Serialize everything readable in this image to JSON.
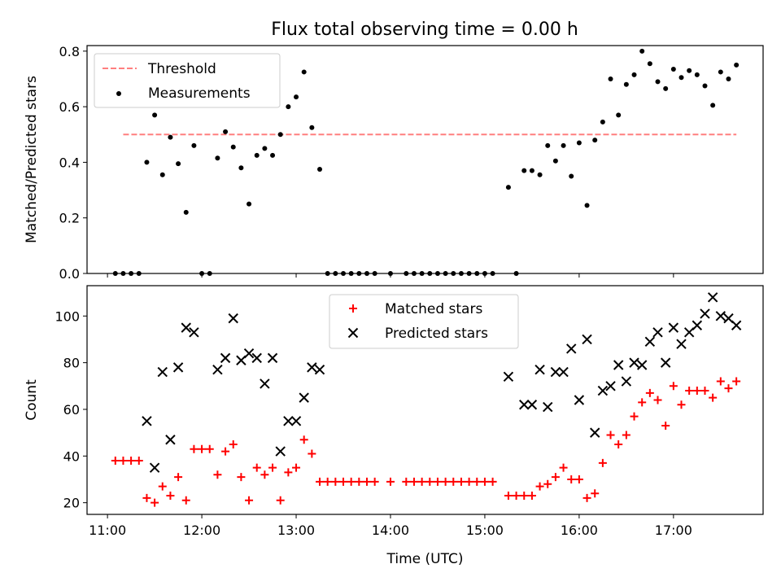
{
  "figure": {
    "title": "Flux total observing time = 0.00 h"
  },
  "chart_data": [
    {
      "type": "scatter",
      "panel": "top",
      "title": "Flux total observing time = 0.00 h",
      "ylabel": "Matched/Predicted stars",
      "xlabel": "",
      "xlim": [
        "10:47",
        "17:57"
      ],
      "ylim": [
        0,
        0.82
      ],
      "yticks": [
        0.0,
        0.2,
        0.4,
        0.6,
        0.8
      ],
      "ytick_labels": [
        "0.0",
        "0.2",
        "0.4",
        "0.6",
        "0.8"
      ],
      "xticks": [
        "11:00",
        "12:00",
        "13:00",
        "14:00",
        "15:00",
        "16:00",
        "17:00"
      ],
      "xtick_labels_visible": false,
      "grid": false,
      "legend": {
        "placement": "top-left",
        "entries": [
          "Threshold",
          "Measurements"
        ]
      },
      "series": [
        {
          "name": "Threshold",
          "kind": "dashed-line",
          "color": "#ff7f7f",
          "points": [
            [
              "11:10",
              0.5
            ],
            [
              "17:40",
              0.5
            ]
          ]
        },
        {
          "name": "Measurements",
          "kind": "dot",
          "color": "#000000",
          "points": [
            [
              "11:05",
              0.0
            ],
            [
              "11:10",
              0.0
            ],
            [
              "11:15",
              0.0
            ],
            [
              "11:20",
              0.0
            ],
            [
              "11:25",
              0.4
            ],
            [
              "11:30",
              0.57
            ],
            [
              "11:35",
              0.355
            ],
            [
              "11:40",
              0.49
            ],
            [
              "11:45",
              0.395
            ],
            [
              "11:50",
              0.22
            ],
            [
              "11:55",
              0.46
            ],
            [
              "12:00",
              0.0
            ],
            [
              "12:05",
              0.0
            ],
            [
              "12:10",
              0.415
            ],
            [
              "12:15",
              0.51
            ],
            [
              "12:20",
              0.455
            ],
            [
              "12:25",
              0.38
            ],
            [
              "12:30",
              0.25
            ],
            [
              "12:35",
              0.425
            ],
            [
              "12:40",
              0.45
            ],
            [
              "12:45",
              0.425
            ],
            [
              "12:50",
              0.5
            ],
            [
              "12:55",
              0.6
            ],
            [
              "13:00",
              0.635
            ],
            [
              "13:05",
              0.725
            ],
            [
              "13:10",
              0.525
            ],
            [
              "13:15",
              0.375
            ],
            [
              "13:20",
              0.0
            ],
            [
              "13:25",
              0.0
            ],
            [
              "13:30",
              0.0
            ],
            [
              "13:35",
              0.0
            ],
            [
              "13:40",
              0.0
            ],
            [
              "13:45",
              0.0
            ],
            [
              "13:50",
              0.0
            ],
            [
              "14:00",
              0.0
            ],
            [
              "14:10",
              0.0
            ],
            [
              "14:15",
              0.0
            ],
            [
              "14:20",
              0.0
            ],
            [
              "14:25",
              0.0
            ],
            [
              "14:30",
              0.0
            ],
            [
              "14:35",
              0.0
            ],
            [
              "14:40",
              0.0
            ],
            [
              "14:45",
              0.0
            ],
            [
              "14:50",
              0.0
            ],
            [
              "14:55",
              0.0
            ],
            [
              "15:00",
              0.0
            ],
            [
              "15:05",
              0.0
            ],
            [
              "15:15",
              0.31
            ],
            [
              "15:20",
              0.0
            ],
            [
              "15:25",
              0.37
            ],
            [
              "15:30",
              0.37
            ],
            [
              "15:35",
              0.355
            ],
            [
              "15:40",
              0.46
            ],
            [
              "15:45",
              0.405
            ],
            [
              "15:50",
              0.46
            ],
            [
              "15:55",
              0.35
            ],
            [
              "16:00",
              0.47
            ],
            [
              "16:05",
              0.245
            ],
            [
              "16:10",
              0.48
            ],
            [
              "16:15",
              0.545
            ],
            [
              "16:20",
              0.7
            ],
            [
              "16:25",
              0.57
            ],
            [
              "16:30",
              0.68
            ],
            [
              "16:35",
              0.715
            ],
            [
              "16:40",
              0.8
            ],
            [
              "16:45",
              0.755
            ],
            [
              "16:50",
              0.69
            ],
            [
              "16:55",
              0.665
            ],
            [
              "17:00",
              0.735
            ],
            [
              "17:05",
              0.705
            ],
            [
              "17:10",
              0.73
            ],
            [
              "17:15",
              0.715
            ],
            [
              "17:20",
              0.675
            ],
            [
              "17:25",
              0.605
            ],
            [
              "17:30",
              0.725
            ],
            [
              "17:35",
              0.7
            ],
            [
              "17:40",
              0.75
            ]
          ]
        }
      ]
    },
    {
      "type": "scatter",
      "panel": "bottom",
      "title": "",
      "xlabel": "Time (UTC)",
      "ylabel": "Count",
      "xlim": [
        "10:47",
        "17:57"
      ],
      "ylim": [
        15,
        113
      ],
      "yticks": [
        20,
        40,
        60,
        80,
        100
      ],
      "ytick_labels": [
        "20",
        "40",
        "60",
        "80",
        "100"
      ],
      "xticks": [
        "11:00",
        "12:00",
        "13:00",
        "14:00",
        "15:00",
        "16:00",
        "17:00"
      ],
      "xtick_labels": [
        "11:00",
        "12:00",
        "13:00",
        "14:00",
        "15:00",
        "16:00",
        "17:00"
      ],
      "grid": false,
      "legend": {
        "placement": "top-center",
        "entries": [
          "Matched stars",
          "Predicted stars"
        ]
      },
      "series": [
        {
          "name": "Matched stars",
          "marker": "plus",
          "color": "#ff0000",
          "points": [
            [
              "11:05",
              38
            ],
            [
              "11:10",
              38
            ],
            [
              "11:15",
              38
            ],
            [
              "11:20",
              38
            ],
            [
              "11:25",
              22
            ],
            [
              "11:30",
              20
            ],
            [
              "11:35",
              27
            ],
            [
              "11:40",
              23
            ],
            [
              "11:45",
              31
            ],
            [
              "11:50",
              21
            ],
            [
              "11:55",
              43
            ],
            [
              "12:00",
              43
            ],
            [
              "12:05",
              43
            ],
            [
              "12:10",
              32
            ],
            [
              "12:15",
              42
            ],
            [
              "12:20",
              45
            ],
            [
              "12:25",
              31
            ],
            [
              "12:30",
              21
            ],
            [
              "12:35",
              35
            ],
            [
              "12:40",
              32
            ],
            [
              "12:45",
              35
            ],
            [
              "12:50",
              21
            ],
            [
              "12:55",
              33
            ],
            [
              "13:00",
              35
            ],
            [
              "13:05",
              47
            ],
            [
              "13:10",
              41
            ],
            [
              "13:15",
              29
            ],
            [
              "13:20",
              29
            ],
            [
              "13:25",
              29
            ],
            [
              "13:30",
              29
            ],
            [
              "13:35",
              29
            ],
            [
              "13:40",
              29
            ],
            [
              "13:45",
              29
            ],
            [
              "13:50",
              29
            ],
            [
              "14:00",
              29
            ],
            [
              "14:10",
              29
            ],
            [
              "14:15",
              29
            ],
            [
              "14:20",
              29
            ],
            [
              "14:25",
              29
            ],
            [
              "14:30",
              29
            ],
            [
              "14:35",
              29
            ],
            [
              "14:40",
              29
            ],
            [
              "14:45",
              29
            ],
            [
              "14:50",
              29
            ],
            [
              "14:55",
              29
            ],
            [
              "15:00",
              29
            ],
            [
              "15:05",
              29
            ],
            [
              "15:15",
              23
            ],
            [
              "15:20",
              23
            ],
            [
              "15:25",
              23
            ],
            [
              "15:30",
              23
            ],
            [
              "15:35",
              27
            ],
            [
              "15:40",
              28
            ],
            [
              "15:45",
              31
            ],
            [
              "15:50",
              35
            ],
            [
              "15:55",
              30
            ],
            [
              "16:00",
              30
            ],
            [
              "16:05",
              22
            ],
            [
              "16:10",
              24
            ],
            [
              "16:15",
              37
            ],
            [
              "16:20",
              49
            ],
            [
              "16:25",
              45
            ],
            [
              "16:30",
              49
            ],
            [
              "16:35",
              57
            ],
            [
              "16:40",
              63
            ],
            [
              "16:45",
              67
            ],
            [
              "16:50",
              64
            ],
            [
              "16:55",
              53
            ],
            [
              "17:00",
              70
            ],
            [
              "17:05",
              62
            ],
            [
              "17:10",
              68
            ],
            [
              "17:15",
              68
            ],
            [
              "17:20",
              68
            ],
            [
              "17:25",
              65
            ],
            [
              "17:30",
              72
            ],
            [
              "17:35",
              69
            ],
            [
              "17:40",
              72
            ]
          ]
        },
        {
          "name": "Predicted stars",
          "marker": "x",
          "color": "#000000",
          "points": [
            [
              "11:25",
              55
            ],
            [
              "11:30",
              35
            ],
            [
              "11:35",
              76
            ],
            [
              "11:40",
              47
            ],
            [
              "11:45",
              78
            ],
            [
              "11:50",
              95
            ],
            [
              "11:55",
              93
            ],
            [
              "12:10",
              77
            ],
            [
              "12:15",
              82
            ],
            [
              "12:20",
              99
            ],
            [
              "12:25",
              81
            ],
            [
              "12:30",
              84
            ],
            [
              "12:35",
              82
            ],
            [
              "12:40",
              71
            ],
            [
              "12:45",
              82
            ],
            [
              "12:50",
              42
            ],
            [
              "12:55",
              55
            ],
            [
              "13:00",
              55
            ],
            [
              "13:05",
              65
            ],
            [
              "13:10",
              78
            ],
            [
              "13:15",
              77
            ],
            [
              "15:15",
              74
            ],
            [
              "15:25",
              62
            ],
            [
              "15:30",
              62
            ],
            [
              "15:35",
              77
            ],
            [
              "15:40",
              61
            ],
            [
              "15:45",
              76
            ],
            [
              "15:50",
              76
            ],
            [
              "15:55",
              86
            ],
            [
              "16:00",
              64
            ],
            [
              "16:05",
              90
            ],
            [
              "16:10",
              50
            ],
            [
              "16:15",
              68
            ],
            [
              "16:20",
              70
            ],
            [
              "16:25",
              79
            ],
            [
              "16:30",
              72
            ],
            [
              "16:35",
              80
            ],
            [
              "16:40",
              79
            ],
            [
              "16:45",
              89
            ],
            [
              "16:50",
              93
            ],
            [
              "16:55",
              80
            ],
            [
              "17:00",
              95
            ],
            [
              "17:05",
              88
            ],
            [
              "17:10",
              93
            ],
            [
              "17:15",
              96
            ],
            [
              "17:20",
              101
            ],
            [
              "17:25",
              108
            ],
            [
              "17:30",
              100
            ],
            [
              "17:35",
              99
            ],
            [
              "17:40",
              96
            ]
          ]
        }
      ]
    }
  ]
}
